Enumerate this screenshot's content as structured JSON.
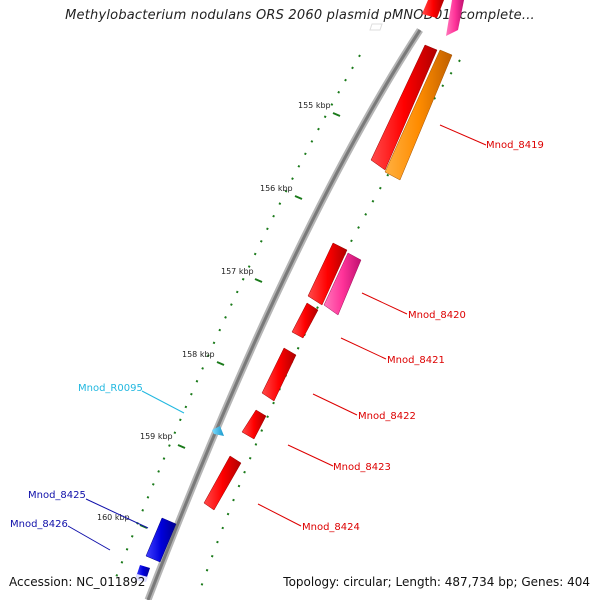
{
  "title": "Methylobacterium nodulans ORS 2060 plasmid pMNOD01, complete...",
  "footer": {
    "accession": "Accession: NC_011892",
    "summary": "Topology: circular; Length: 487,734 bp; Genes: 404"
  },
  "ticks": [
    {
      "label": "155 kbp"
    },
    {
      "label": "156 kbp"
    },
    {
      "label": "157 kbp"
    },
    {
      "label": "158 kbp"
    },
    {
      "label": "159 kbp"
    },
    {
      "label": "160 kbp"
    }
  ],
  "genes": [
    {
      "label": "Mnod_8419",
      "color": "#dd0000"
    },
    {
      "label": "Mnod_8420",
      "color": "#dd0000"
    },
    {
      "label": "Mnod_8421",
      "color": "#dd0000"
    },
    {
      "label": "Mnod_8422",
      "color": "#dd0000"
    },
    {
      "label": "Mnod_8423",
      "color": "#dd0000"
    },
    {
      "label": "Mnod_8424",
      "color": "#dd0000"
    },
    {
      "label": "Mnod_R0095",
      "color": "#22b8e0"
    },
    {
      "label": "Mnod_8425",
      "color": "#1010aa"
    },
    {
      "label": "Mnod_8426",
      "color": "#1010aa"
    }
  ],
  "colors": {
    "backbone": "#8a8a8a",
    "gc_skew": "#1a7a1a",
    "red_gene": "#ff0000",
    "orange_gene": "#ff8c00",
    "pink_gene": "#ff3399",
    "blue_gene": "#0000dd",
    "rna_gene": "#33bbee"
  }
}
